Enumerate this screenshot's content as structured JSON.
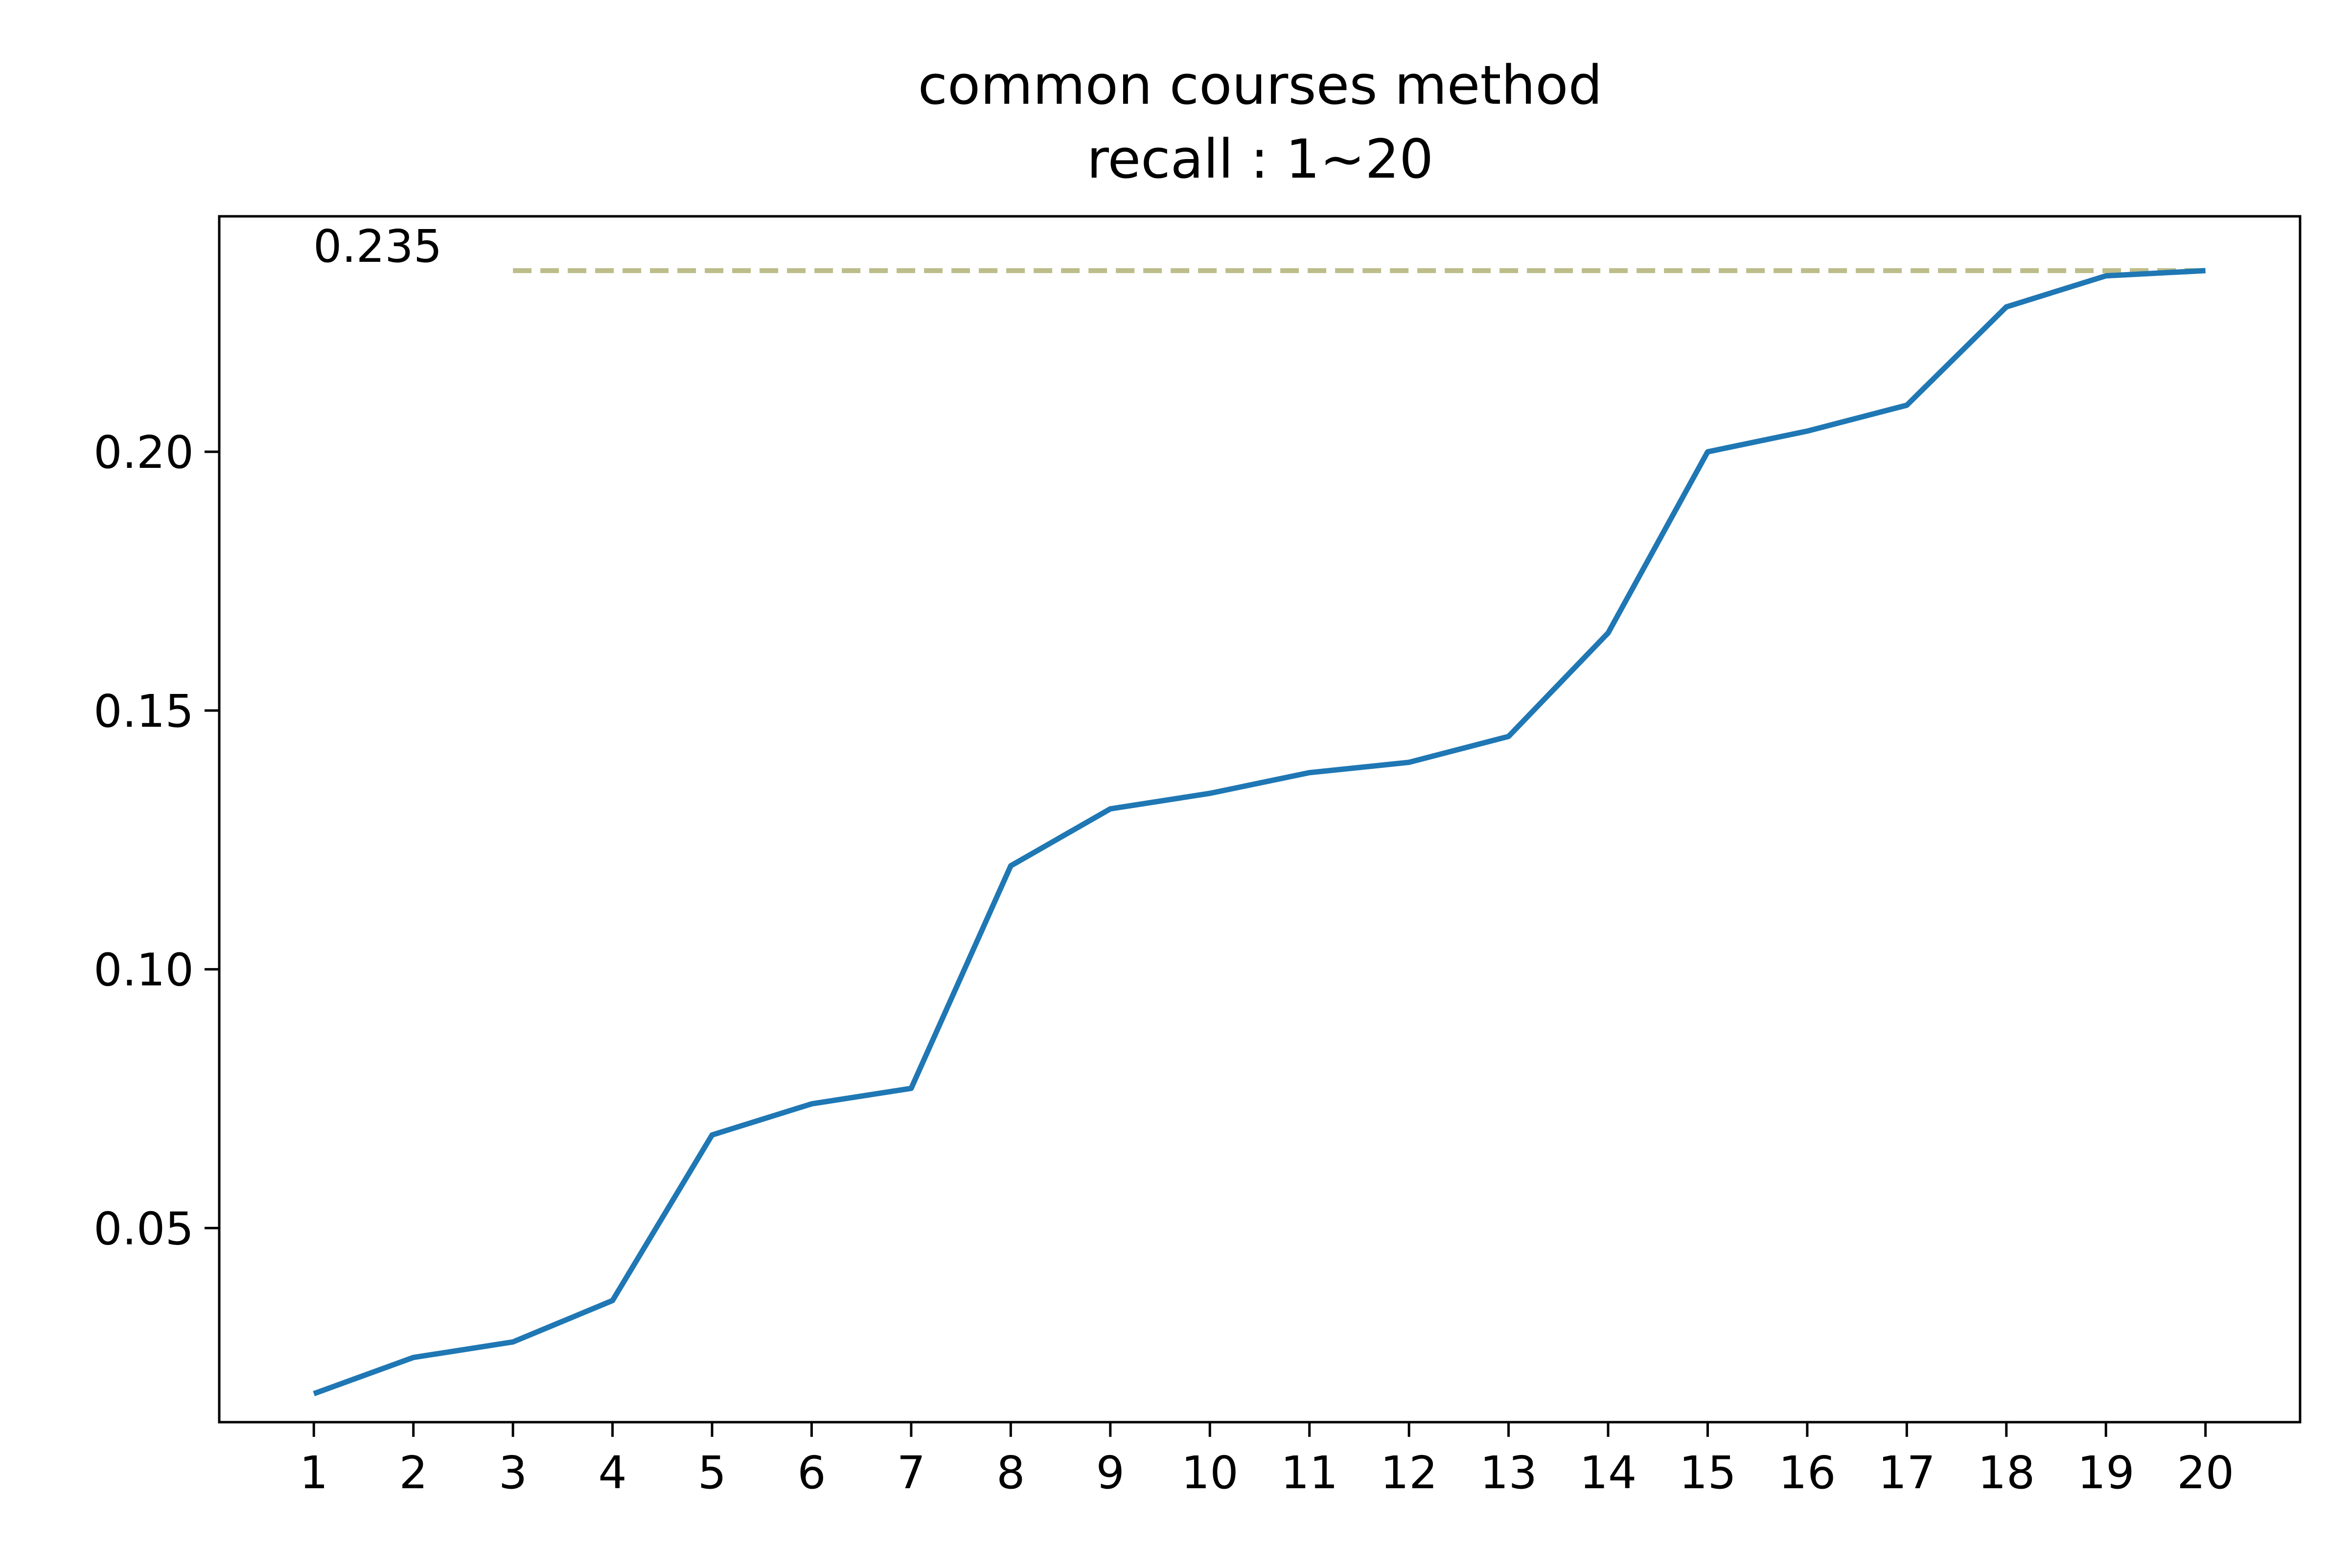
{
  "chart_data": {
    "type": "line",
    "title": "common courses method",
    "subtitle": "recall : 1~20",
    "xlabel": "",
    "ylabel": "",
    "x": [
      1,
      2,
      3,
      4,
      5,
      6,
      7,
      8,
      9,
      10,
      11,
      12,
      13,
      14,
      15,
      16,
      17,
      18,
      19,
      20
    ],
    "x_tick_labels": [
      "1",
      "2",
      "3",
      "4",
      "5",
      "6",
      "7",
      "8",
      "9",
      "10",
      "11",
      "12",
      "13",
      "14",
      "15",
      "16",
      "17",
      "18",
      "19",
      "20"
    ],
    "y_ticks": [
      0.05,
      0.1,
      0.15,
      0.2
    ],
    "y_tick_labels": [
      "0.05",
      "0.10",
      "0.15",
      "0.20"
    ],
    "xlim": [
      0.05,
      20.95
    ],
    "ylim": [
      0.0125,
      0.2455
    ],
    "series": [
      {
        "values": [
          0.018,
          0.025,
          0.028,
          0.036,
          0.068,
          0.074,
          0.077,
          0.12,
          0.131,
          0.134,
          0.138,
          0.14,
          0.145,
          0.165,
          0.2,
          0.204,
          0.209,
          0.228,
          0.234,
          0.235
        ],
        "color": "#1f77b4"
      }
    ],
    "reference_line": {
      "value": 0.235,
      "label": "0.235",
      "x_range": [
        3,
        20
      ],
      "style": "dashed",
      "color": "#bcbd8a"
    },
    "grid": false,
    "legend": "none"
  }
}
